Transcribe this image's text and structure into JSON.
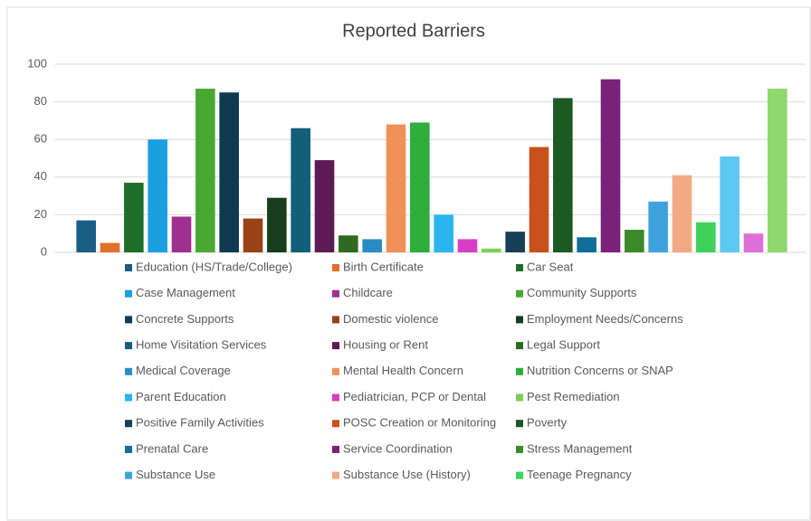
{
  "chart_data": {
    "type": "bar",
    "title": "Reported Barriers",
    "categories": [
      "Education (HS/Trade/College)",
      "Birth Certificate",
      "Car Seat",
      "Case Management",
      "Childcare",
      "Community Supports",
      "Concrete Supports",
      "Domestic violence",
      "Employment Needs/Concerns",
      "Home Visitation Services",
      "Housing or Rent",
      "Legal Support",
      "Medical Coverage",
      "Mental Health Concern",
      "Nutrition Concerns or SNAP",
      "Parent Education",
      "Pediatrician, PCP or Dental",
      "Pest Remediation",
      "Positive Family Activities",
      "POSC Creation or Monitoring",
      "Poverty",
      "Prenatal Care",
      "Service Coordination",
      "Stress Management",
      "Substance Use",
      "Substance Use (History)",
      "Teenage Pregnancy",
      null,
      null,
      null
    ],
    "values": [
      17,
      5,
      37,
      60,
      19,
      87,
      85,
      18,
      29,
      66,
      49,
      9,
      7,
      68,
      69,
      20,
      7,
      2,
      11,
      56,
      82,
      8,
      92,
      12,
      27,
      41,
      16,
      51,
      10,
      87
    ],
    "colors": [
      "#1b5e84",
      "#e0702a",
      "#1e6e2a",
      "#1aa0e0",
      "#a0308f",
      "#4aa832",
      "#0f3a52",
      "#9a4215",
      "#173d1c",
      "#135e7a",
      "#5e1a55",
      "#2f6a22",
      "#2a8cc4",
      "#f0915a",
      "#2fae3c",
      "#2ab5ee",
      "#d63fc4",
      "#7ccf5a",
      "#173f5a",
      "#c8521a",
      "#1b5a23",
      "#0f6e9a",
      "#7a2278",
      "#3a8a2a",
      "#3ea3dd",
      "#f3a983",
      "#3fd15a",
      "#5ec8f0",
      "#df6fd6",
      "#8fd86d"
    ],
    "ylim": [
      0,
      100
    ],
    "yticks": [
      0,
      20,
      40,
      60,
      80,
      100
    ],
    "grid": true,
    "legend": "bottom"
  }
}
